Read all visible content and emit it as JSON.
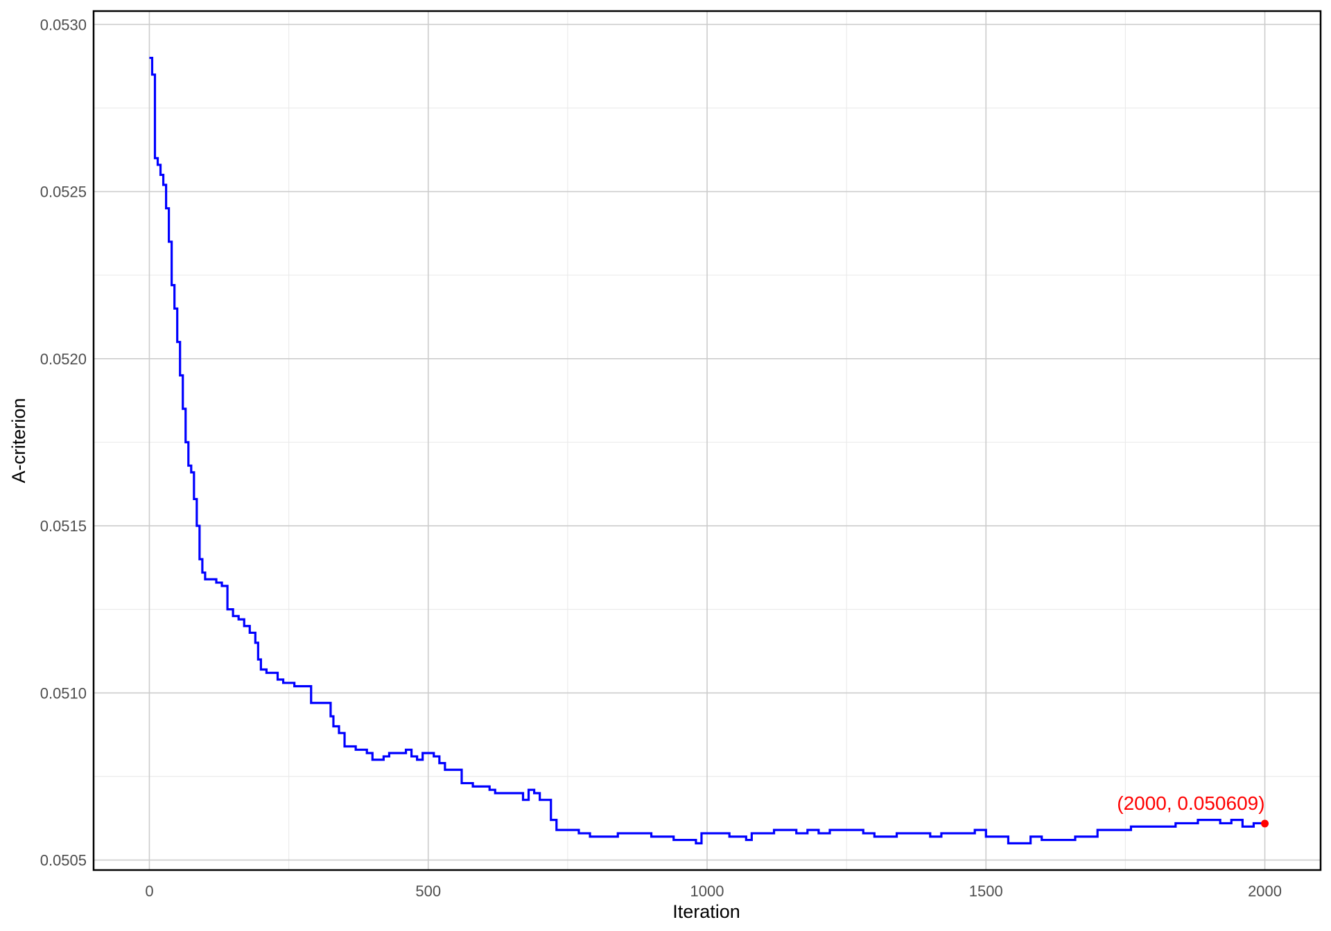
{
  "chart_data": {
    "type": "line",
    "title": "",
    "xlabel": "Iteration",
    "ylabel": "A-criterion",
    "xlim": [
      -100,
      2100
    ],
    "ylim": [
      0.05047,
      0.05304
    ],
    "x_ticks": [
      0,
      500,
      1000,
      1500,
      2000
    ],
    "x_tick_labels": [
      "0",
      "500",
      "1000",
      "1500",
      "2000"
    ],
    "y_ticks": [
      0.0505,
      0.051,
      0.0515,
      0.052,
      0.0525,
      0.053
    ],
    "y_tick_labels": [
      "0.0505",
      "0.0510",
      "0.0515",
      "0.0520",
      "0.0525",
      "0.0530"
    ],
    "grid": true,
    "line_style": "step",
    "series": [
      {
        "color": "#0000ff",
        "x": [
          0,
          5,
          10,
          15,
          20,
          25,
          30,
          35,
          40,
          45,
          50,
          55,
          60,
          65,
          70,
          75,
          80,
          85,
          90,
          95,
          100,
          110,
          120,
          130,
          140,
          150,
          160,
          170,
          180,
          190,
          195,
          200,
          210,
          220,
          230,
          240,
          250,
          260,
          270,
          280,
          290,
          300,
          310,
          320,
          325,
          330,
          340,
          350,
          360,
          370,
          380,
          390,
          400,
          410,
          420,
          430,
          440,
          450,
          460,
          470,
          480,
          490,
          500,
          510,
          520,
          530,
          540,
          550,
          560,
          570,
          580,
          590,
          600,
          610,
          620,
          640,
          660,
          670,
          680,
          690,
          700,
          710,
          720,
          730,
          740,
          750,
          760,
          770,
          780,
          790,
          800,
          820,
          840,
          860,
          880,
          900,
          920,
          940,
          950,
          960,
          980,
          990,
          1000,
          1020,
          1040,
          1060,
          1070,
          1080,
          1100,
          1120,
          1140,
          1160,
          1180,
          1200,
          1220,
          1240,
          1260,
          1280,
          1300,
          1320,
          1340,
          1360,
          1380,
          1400,
          1420,
          1440,
          1460,
          1480,
          1500,
          1520,
          1540,
          1560,
          1580,
          1600,
          1620,
          1640,
          1660,
          1680,
          1700,
          1720,
          1740,
          1760,
          1780,
          1800,
          1820,
          1840,
          1860,
          1880,
          1900,
          1920,
          1940,
          1960,
          1980,
          2000
        ],
        "y": [
          0.0529,
          0.05285,
          0.0526,
          0.05258,
          0.05255,
          0.05252,
          0.05245,
          0.05235,
          0.05222,
          0.05215,
          0.05205,
          0.05195,
          0.05185,
          0.05175,
          0.05168,
          0.05166,
          0.05158,
          0.0515,
          0.0514,
          0.05136,
          0.05134,
          0.05134,
          0.05133,
          0.05132,
          0.05125,
          0.05123,
          0.05122,
          0.0512,
          0.05118,
          0.05115,
          0.0511,
          0.05107,
          0.05106,
          0.05106,
          0.05104,
          0.05103,
          0.05103,
          0.05102,
          0.05102,
          0.05102,
          0.05097,
          0.05097,
          0.05097,
          0.05097,
          0.05093,
          0.0509,
          0.05088,
          0.05084,
          0.05084,
          0.05083,
          0.05083,
          0.05082,
          0.0508,
          0.0508,
          0.05081,
          0.05082,
          0.05082,
          0.05082,
          0.05083,
          0.05081,
          0.0508,
          0.05082,
          0.05082,
          0.05081,
          0.05079,
          0.05077,
          0.05077,
          0.05077,
          0.05073,
          0.05073,
          0.05072,
          0.05072,
          0.05072,
          0.05071,
          0.0507,
          0.0507,
          0.0507,
          0.05068,
          0.05071,
          0.0507,
          0.05068,
          0.05068,
          0.05062,
          0.05059,
          0.05059,
          0.05059,
          0.05059,
          0.05058,
          0.05058,
          0.05057,
          0.05057,
          0.05057,
          0.05058,
          0.05058,
          0.05058,
          0.05057,
          0.05057,
          0.05056,
          0.05056,
          0.05056,
          0.05055,
          0.05058,
          0.05058,
          0.05058,
          0.05057,
          0.05057,
          0.05056,
          0.05058,
          0.05058,
          0.05059,
          0.05059,
          0.05058,
          0.05059,
          0.05058,
          0.05059,
          0.05059,
          0.05059,
          0.05058,
          0.05057,
          0.05057,
          0.05058,
          0.05058,
          0.05058,
          0.05057,
          0.05058,
          0.05058,
          0.05058,
          0.05059,
          0.05057,
          0.05057,
          0.05055,
          0.05055,
          0.05057,
          0.05056,
          0.05056,
          0.05056,
          0.05057,
          0.05057,
          0.05059,
          0.05059,
          0.05059,
          0.0506,
          0.0506,
          0.0506,
          0.0506,
          0.05061,
          0.05061,
          0.05062,
          0.05062,
          0.05061,
          0.05062,
          0.0506,
          0.05061,
          0.050609
        ]
      }
    ],
    "highlight_point": {
      "x": 2000,
      "y": 0.050609,
      "label": "(2000, 0.050609)",
      "color": "#ff0000"
    }
  }
}
